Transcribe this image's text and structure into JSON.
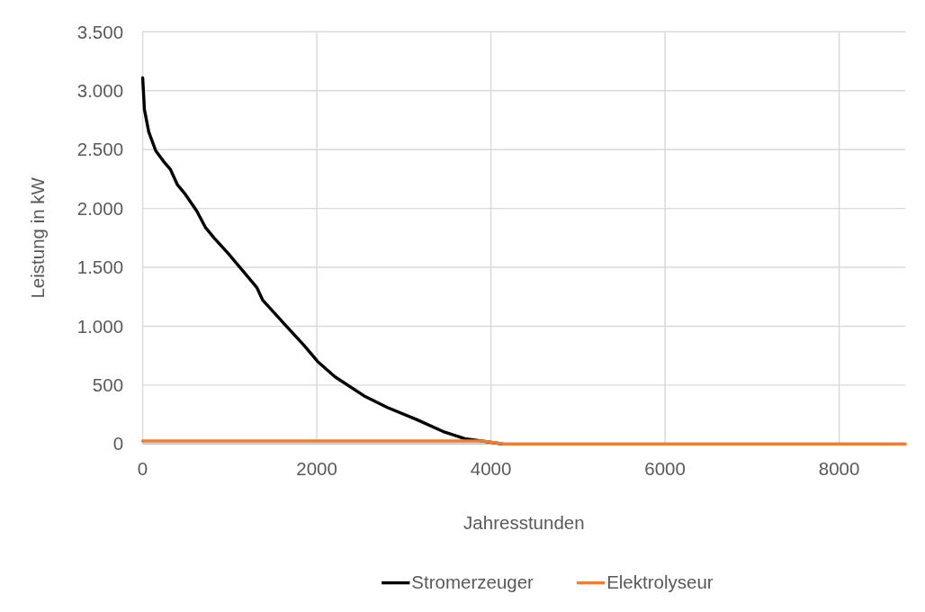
{
  "chart_data": {
    "type": "line",
    "xlabel": "Jahresstunden",
    "ylabel": "Leistung in kW",
    "xlim": [
      0,
      8760
    ],
    "xticks": [
      0,
      2000,
      4000,
      6000,
      8000
    ],
    "ylim": [
      0,
      3500
    ],
    "yticks": [
      0,
      500,
      {
        "value": 1000,
        "label": "1.000"
      },
      {
        "value": 1500,
        "label": "1.500"
      },
      {
        "value": 2000,
        "label": "2.000"
      },
      {
        "value": 2500,
        "label": "2.500"
      },
      {
        "value": 3000,
        "label": "3.000"
      },
      {
        "value": 3500,
        "label": "3.500"
      }
    ],
    "grid": true,
    "legend": "bottom",
    "marker": "none",
    "line_style": "solid",
    "series": [
      {
        "name": "Stromerzeuger",
        "color": "#000000",
        "x": [
          0,
          20,
          70,
          150,
          240,
          320,
          400,
          490,
          620,
          720,
          820,
          980,
          1150,
          1310,
          1380,
          1650,
          1850,
          2010,
          2210,
          2540,
          2810,
          3140,
          3470,
          3700,
          3870,
          4130
        ],
        "values": [
          3110,
          2840,
          2650,
          2490,
          2400,
          2330,
          2200,
          2120,
          1980,
          1840,
          1750,
          1620,
          1470,
          1330,
          1220,
          1000,
          840,
          700,
          570,
          410,
          310,
          210,
          100,
          45,
          28,
          0
        ]
      },
      {
        "name": "Elektrolyseur",
        "color": "#ed7d31",
        "x": [
          0,
          3900,
          4150,
          8760
        ],
        "values": [
          25,
          25,
          0,
          0
        ]
      }
    ]
  }
}
